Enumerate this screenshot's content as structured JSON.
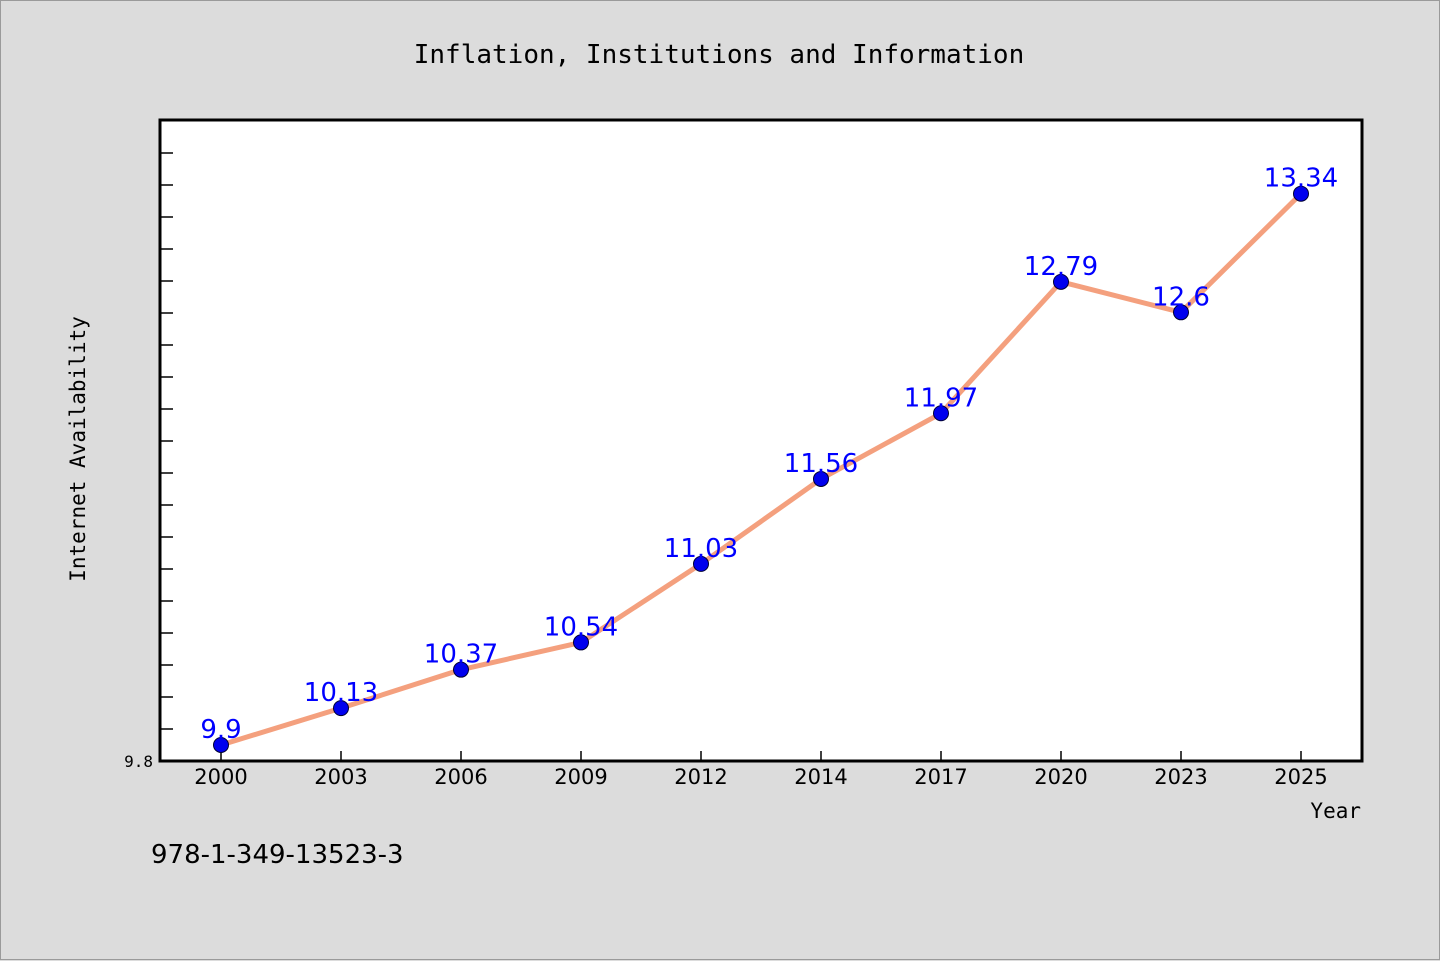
{
  "chart_data": {
    "type": "line",
    "title": "Inflation, Institutions and Information",
    "xlabel": "Year",
    "ylabel": "Internet Availability",
    "categories": [
      "2000",
      "2003",
      "2006",
      "2009",
      "2012",
      "2014",
      "2017",
      "2020",
      "2023",
      "2025"
    ],
    "values": [
      9.9,
      10.13,
      10.37,
      10.54,
      11.03,
      11.56,
      11.97,
      12.79,
      12.6,
      13.34
    ],
    "labels": [
      "9.9",
      "10.13",
      "10.37",
      "10.54",
      "11.03",
      "11.56",
      "11.97",
      "12.79",
      "12.6",
      "13.34"
    ],
    "ylim": [
      9.8,
      13.8
    ],
    "y_tick_labels": [
      "9.8"
    ],
    "grid": false,
    "legend": "none",
    "line_color": "#f4a07e",
    "marker_color": "#0000ee",
    "label_color": "#0000ff"
  },
  "footer": {
    "isbn": "978-1-349-13523-3"
  }
}
